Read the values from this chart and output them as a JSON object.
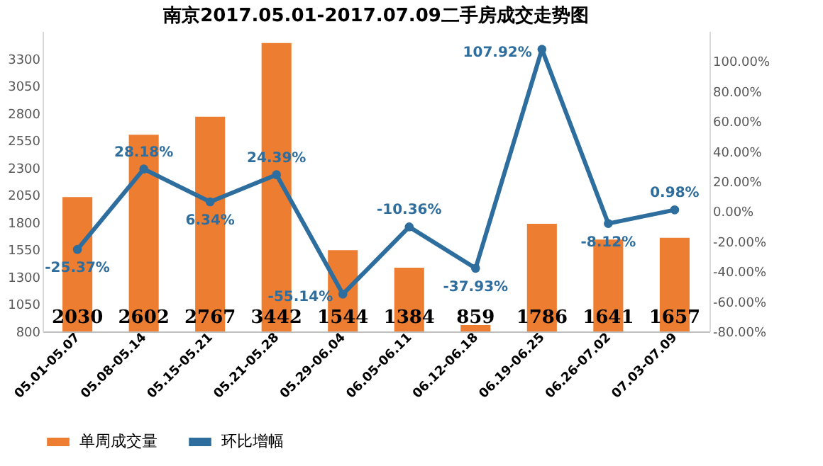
{
  "chart_data": {
    "type": "bar",
    "title": "南京2017.05.01-2017.07.09二手房成交走势图",
    "categories": [
      "05.01-05.07",
      "05.08-05.14",
      "05.15-05.21",
      "05.21-05.28",
      "05.29-06.04",
      "06.05-06.11",
      "06.12-06.18",
      "06.19-06.25",
      "06.26-07.02",
      "07.03-07.09"
    ],
    "series": [
      {
        "name": "单周成交量",
        "color": "#ed7d31",
        "values": [
          2030,
          2602,
          2767,
          3442,
          1544,
          1384,
          859,
          1786,
          1641,
          1657
        ],
        "value_labels": [
          "2030",
          "2602",
          "2767",
          "3442",
          "1544",
          "1384",
          "859",
          "1786",
          "1641",
          "1657"
        ]
      },
      {
        "name": "环比增幅",
        "type": "line",
        "axis": "y2",
        "color": "#2e6e9e",
        "marker": "circle",
        "values": [
          -25.37,
          28.18,
          6.34,
          24.39,
          -55.14,
          -10.36,
          -37.93,
          107.92,
          -8.12,
          0.98
        ],
        "value_labels": [
          "-25.37%",
          "28.18%",
          "6.34%",
          "24.39%",
          "-55.14%",
          "-10.36%",
          "-37.93%",
          "107.92%",
          "-8.12%",
          "0.98%"
        ]
      }
    ],
    "ylim": [
      800,
      3550
    ],
    "yticks": [
      800,
      1050,
      1300,
      1550,
      1800,
      2050,
      2300,
      2550,
      2800,
      3050,
      3300
    ],
    "y2lim": [
      -80,
      120
    ],
    "y2ticks": [
      {
        "value": -80,
        "label": "-80.00%"
      },
      {
        "value": -60,
        "label": "-60.00%"
      },
      {
        "value": -40,
        "label": "-40.00%"
      },
      {
        "value": -20,
        "label": "-20.00%"
      },
      {
        "value": 0,
        "label": "0.00%"
      },
      {
        "value": 20,
        "label": "20.00%"
      },
      {
        "value": 40,
        "label": "40.00%"
      },
      {
        "value": 60,
        "label": "60.00%"
      },
      {
        "value": 80,
        "label": "80.00%"
      },
      {
        "value": 100,
        "label": "100.00%"
      }
    ],
    "grid": false,
    "legend": "bottom"
  }
}
